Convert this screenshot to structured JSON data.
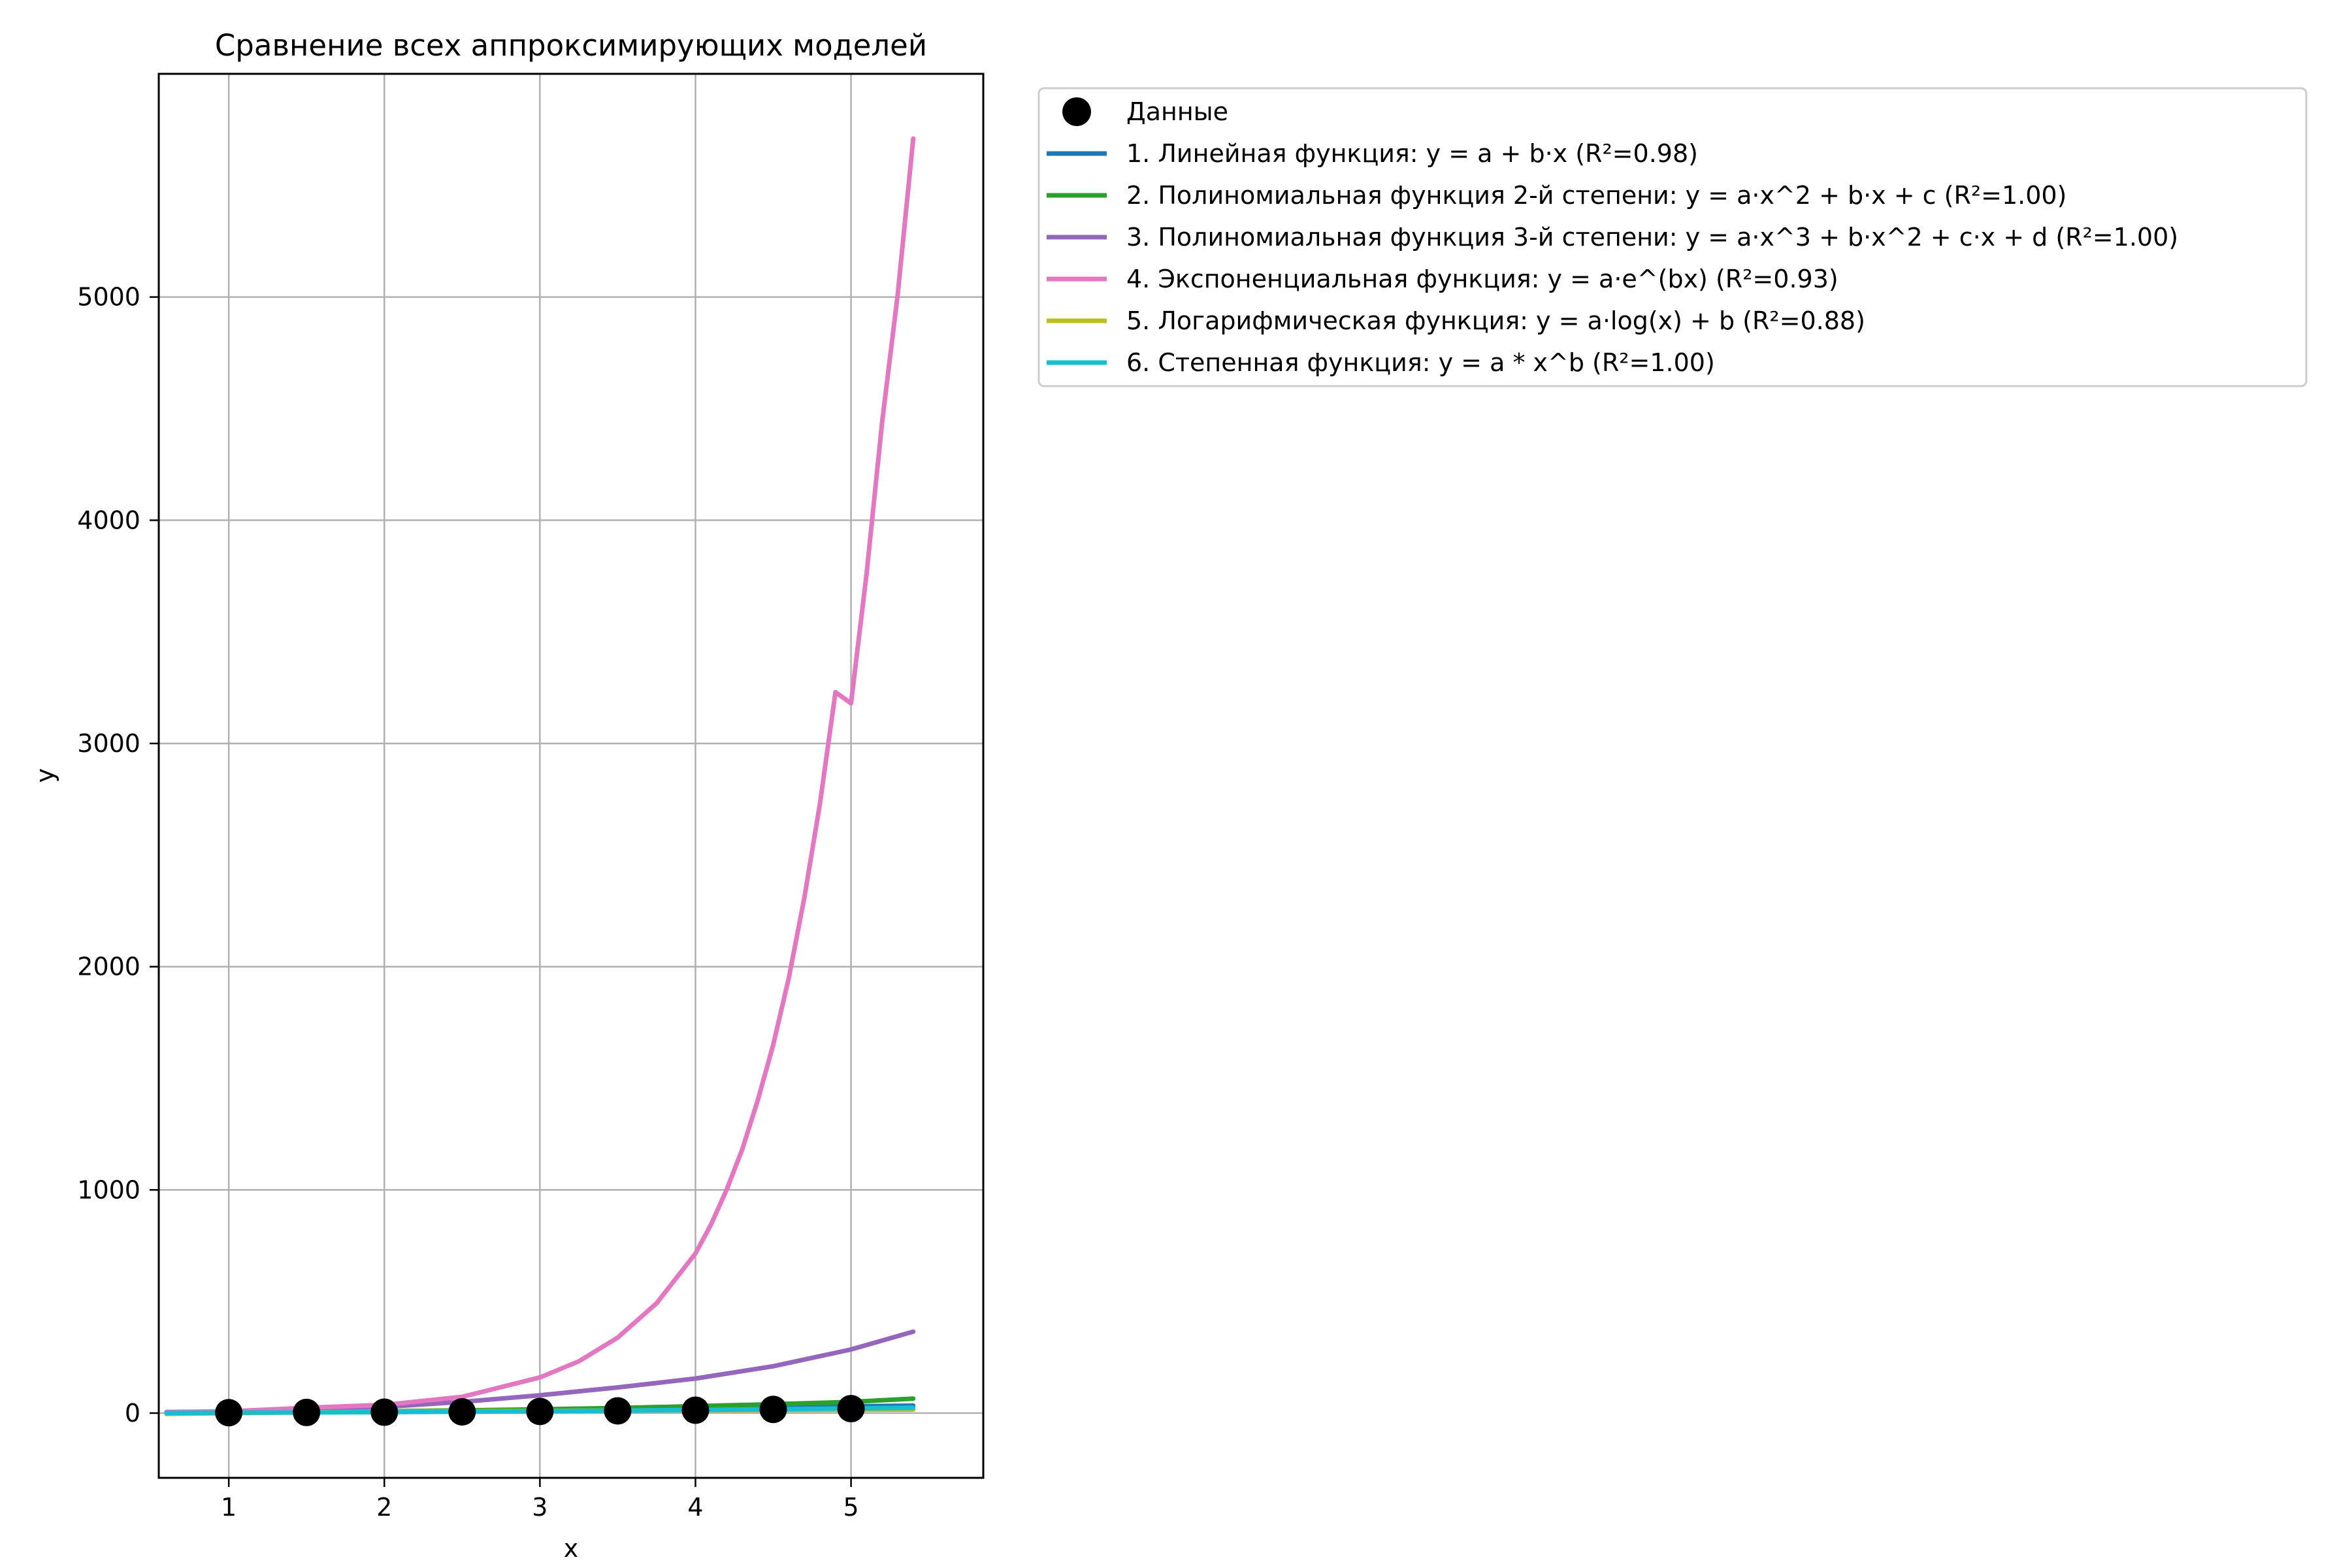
{
  "chart_data": {
    "type": "line",
    "title": "Сравнение всех аппроксимирующих моделей",
    "xlabel": "x",
    "ylabel": "y",
    "xlim": [
      0.55,
      5.85
    ],
    "ylim": [
      -290,
      6000
    ],
    "xticks": [
      1,
      2,
      3,
      4,
      5
    ],
    "yticks": [
      0,
      1000,
      2000,
      3000,
      4000,
      5000
    ],
    "grid": true,
    "legend_position": "outside-top-right",
    "points": {
      "name": "Данные",
      "color": "#000000",
      "x": [
        1,
        1.5,
        2,
        2.5,
        3,
        3.5,
        4,
        4.5,
        5
      ],
      "y": [
        2.0,
        2.9,
        4.0,
        5.6,
        7.5,
        10.0,
        13.0,
        16.5,
        20.0
      ]
    },
    "series": [
      {
        "name": "1. Линейная функция: y = a + b·x (R²=0.98)",
        "color": "#1f77b4",
        "x": [
          0.6,
          1.0,
          1.5,
          2.0,
          2.5,
          3.0,
          3.5,
          4.0,
          4.5,
          5.0,
          5.4
        ],
        "y": [
          -2.5,
          0.5,
          4.3,
          8.0,
          11.8,
          15.5,
          19.3,
          23.0,
          26.8,
          30.5,
          33.5
        ]
      },
      {
        "name": "2. Полиномиальная функция 2-й степени: y = a·x^2 + b·x + c (R²=1.00)",
        "color": "#2ca02c",
        "x": [
          0.6,
          1.0,
          1.5,
          2.0,
          2.5,
          3.0,
          3.5,
          4.0,
          4.5,
          5.0,
          5.4
        ],
        "y": [
          2.0,
          3.0,
          5.0,
          8.0,
          12.0,
          17.0,
          23.0,
          31.0,
          40.0,
          50.0,
          65.0
        ]
      },
      {
        "name": "3. Полиномиальная функция 3-й степени: y = a·x^3 + b·x^2 + c·x + d (R²=1.00)",
        "color": "#9467bd",
        "x": [
          0.6,
          1.0,
          1.5,
          2.0,
          2.5,
          3.0,
          3.5,
          4.0,
          4.5,
          5.0,
          5.4
        ],
        "y": [
          5.0,
          8.0,
          15.0,
          28.0,
          50.0,
          80.0,
          115.0,
          155.0,
          210.0,
          285.0,
          365.0
        ]
      },
      {
        "name": "4. Экспоненциальная функция: y = a·e^(bx) (R²=0.93)",
        "color": "#e377c2",
        "x": [
          0.6,
          1.0,
          1.5,
          2.0,
          2.5,
          3.0,
          3.25,
          3.5,
          3.75,
          4.0,
          4.1,
          4.2,
          4.3,
          4.4,
          4.5,
          4.6,
          4.7,
          4.8,
          4.9,
          5.0,
          5.1,
          5.2,
          5.3,
          5.4
        ],
        "y": [
          3.2,
          7.8,
          24.0,
          37.0,
          73.0,
          160.0,
          232.0,
          338.0,
          492.0,
          715.0,
          845.0,
          1000.0,
          1180.0,
          1400.0,
          1650.0,
          1950.0,
          2310.0,
          2730.0,
          3230.0,
          3180.0,
          3760.0,
          4440.0,
          5010.0,
          5710.0
        ]
      },
      {
        "name": "5. Логарифмическая функция: y = a·log(x) + b (R²=0.88)",
        "color": "#bcbd22",
        "x": [
          0.6,
          1.0,
          1.5,
          2.0,
          2.5,
          3.0,
          3.5,
          4.0,
          4.5,
          5.0,
          5.4
        ],
        "y": [
          -4.0,
          0.0,
          3.5,
          6.5,
          8.5,
          10.0,
          11.5,
          13.0,
          14.0,
          15.0,
          16.0
        ]
      },
      {
        "name": "6. Степенная функция: y = a * x^b (R²=1.00)",
        "color": "#17becf",
        "x": [
          0.6,
          1.0,
          1.5,
          2.0,
          2.5,
          3.0,
          3.5,
          4.0,
          4.5,
          5.0,
          5.4
        ],
        "y": [
          1.0,
          2.0,
          3.0,
          4.5,
          6.5,
          8.5,
          11.0,
          14.0,
          17.0,
          21.0,
          24.0
        ]
      }
    ]
  }
}
